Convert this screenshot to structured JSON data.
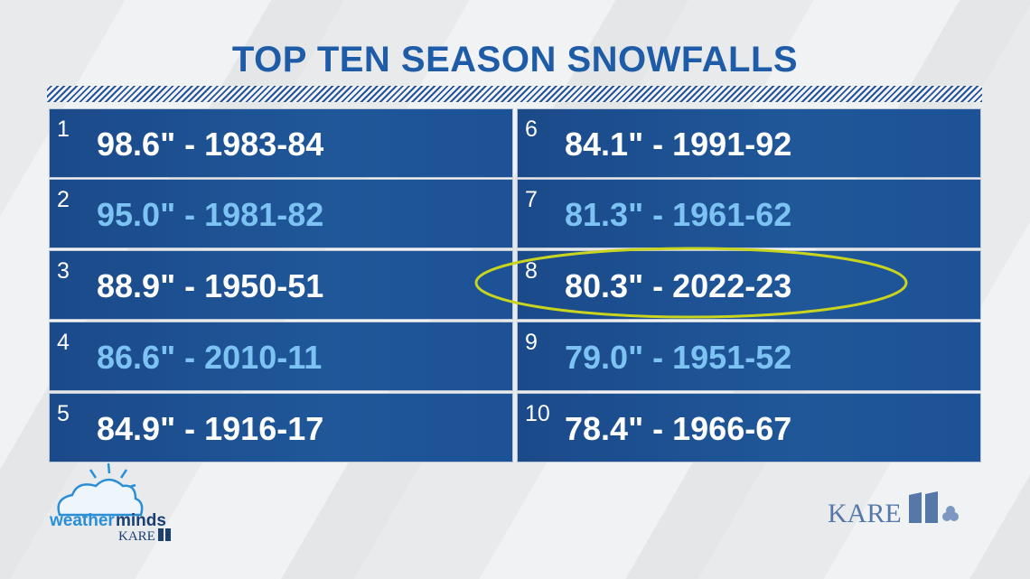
{
  "title": "TOP TEN SEASON SNOWFALLS",
  "entries": [
    {
      "rank": "1",
      "text": "98.6\" - 1983-84"
    },
    {
      "rank": "2",
      "text": "95.0\" - 1981-82"
    },
    {
      "rank": "3",
      "text": "88.9\" - 1950-51"
    },
    {
      "rank": "4",
      "text": "86.6\" - 2010-11"
    },
    {
      "rank": "5",
      "text": "84.9\" - 1916-17"
    },
    {
      "rank": "6",
      "text": "84.1\" - 1991-92"
    },
    {
      "rank": "7",
      "text": "81.3\" - 1961-62"
    },
    {
      "rank": "8",
      "text": "80.3\" - 2022-23"
    },
    {
      "rank": "9",
      "text": "79.0\" - 1951-52"
    },
    {
      "rank": "10",
      "text": "78.4\" - 1966-67"
    }
  ],
  "logos": {
    "weatherminds": {
      "weather": "weather",
      "minds": "minds",
      "station": "KARE"
    },
    "station": "KARE"
  }
}
